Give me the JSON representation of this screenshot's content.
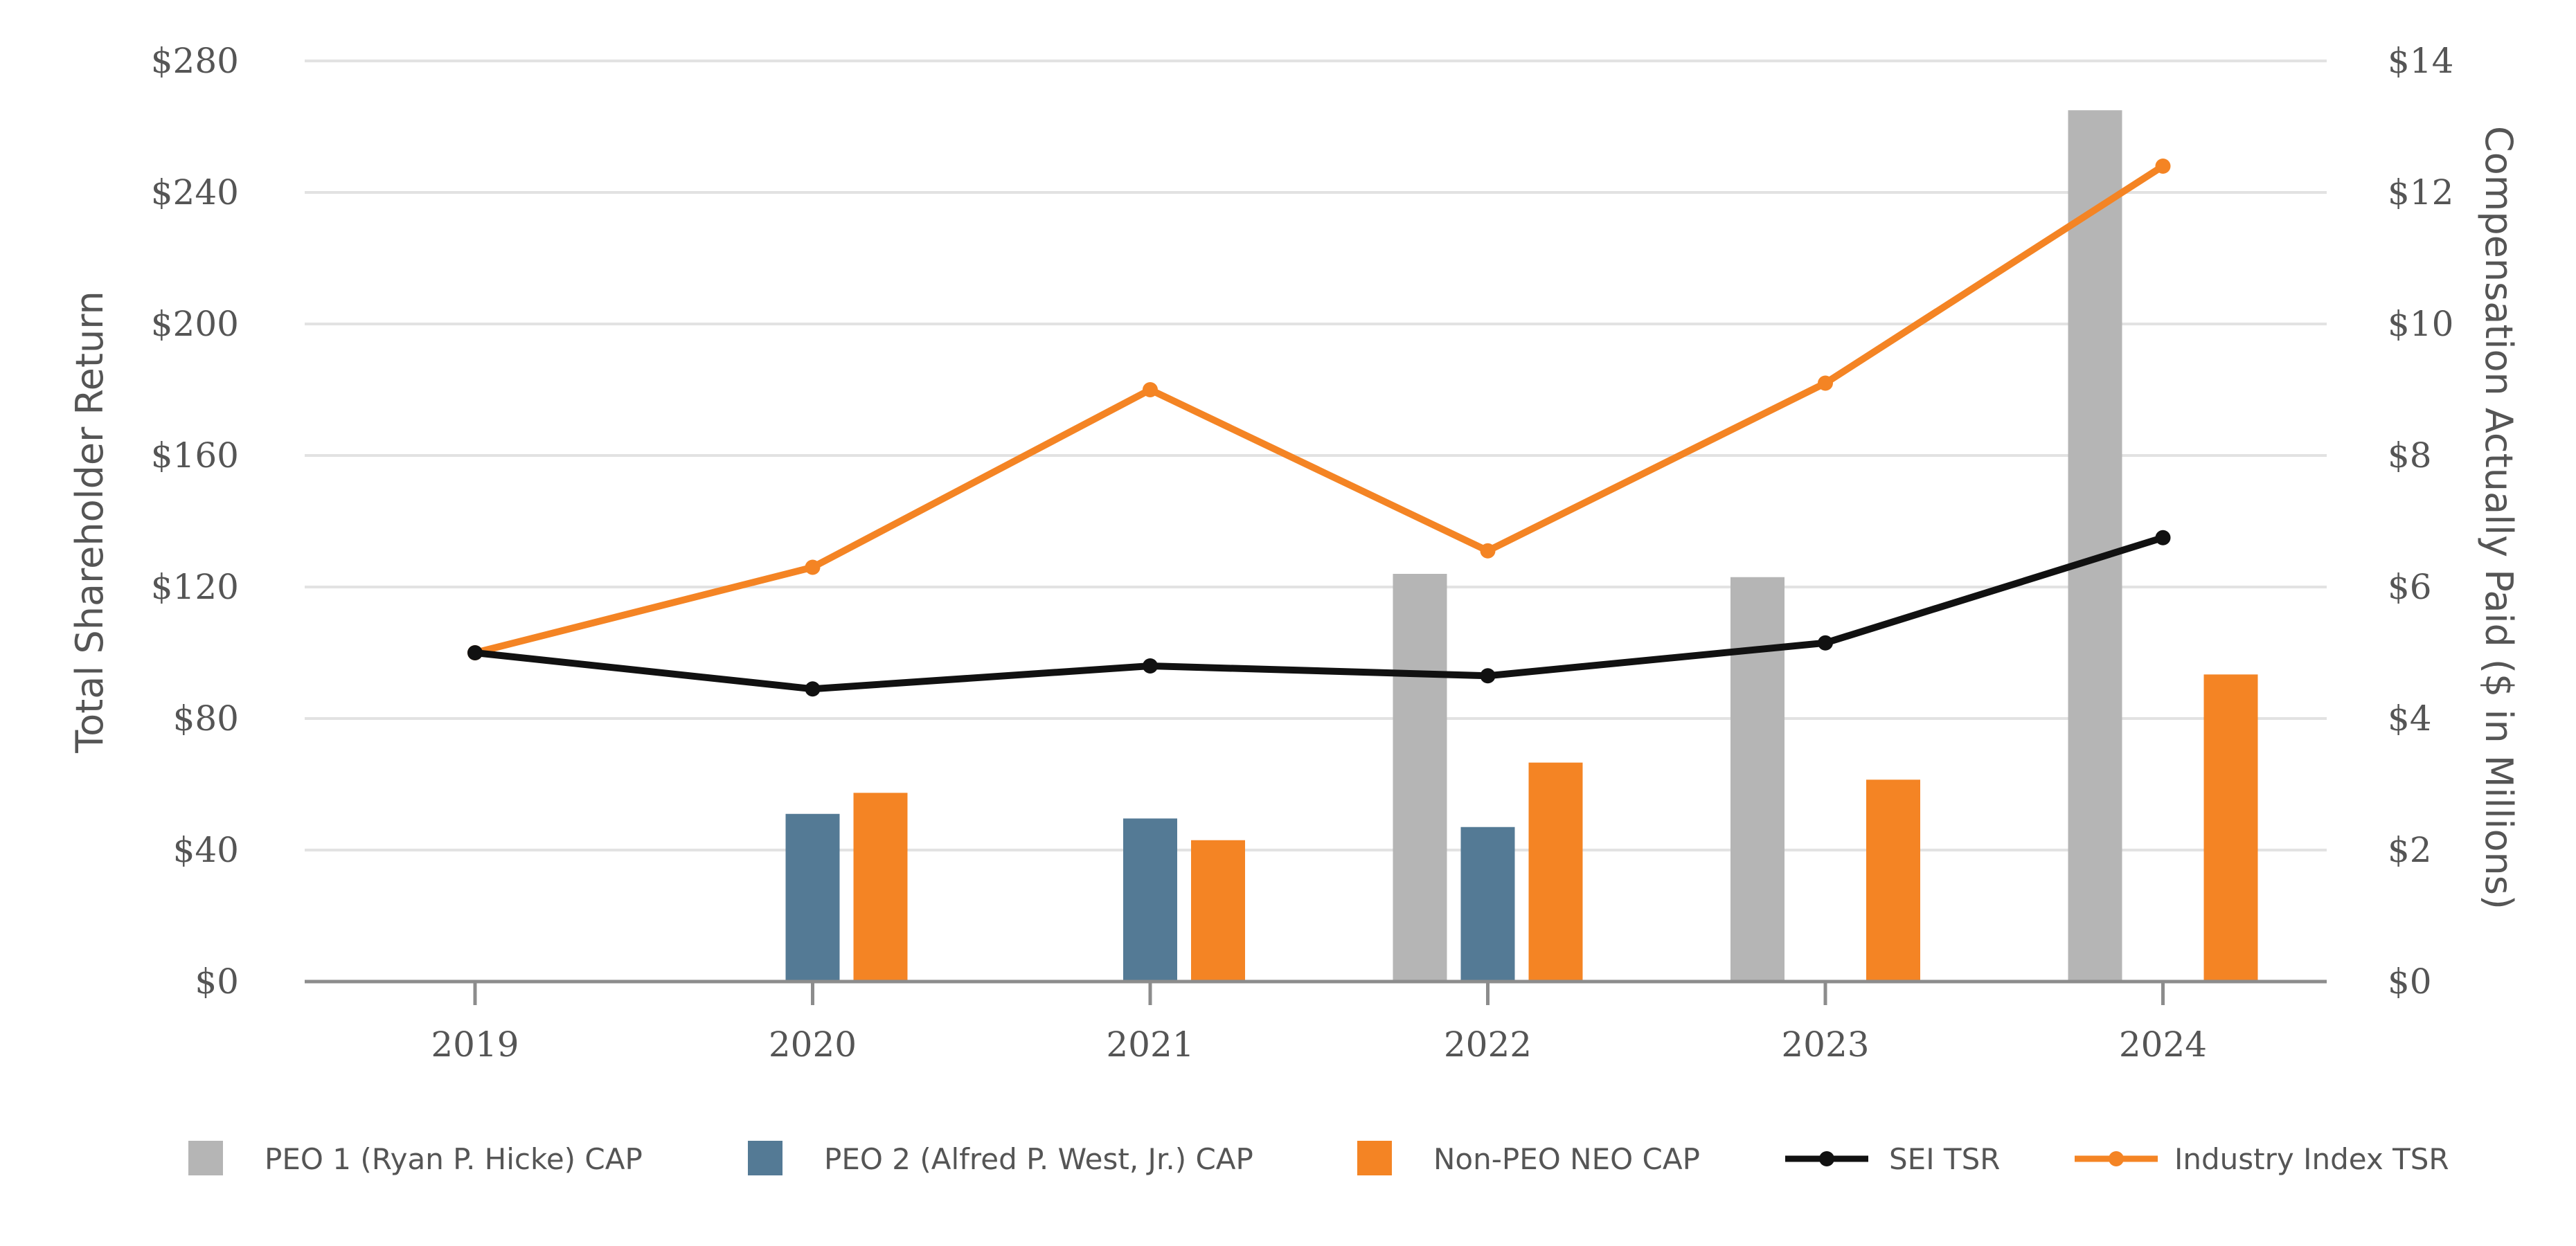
{
  "chart_data": {
    "type": "bar",
    "categories": [
      "2019",
      "2020",
      "2021",
      "2022",
      "2023",
      "2024"
    ],
    "left_axis": {
      "label": "Total Shareholder Return",
      "range": [
        0,
        280
      ],
      "ticks": [
        "$0",
        "$40",
        "$80",
        "$120",
        "$160",
        "$200",
        "$240",
        "$280"
      ]
    },
    "right_axis": {
      "label": "Compensation Actually Paid ($ in Millions)",
      "range": [
        0,
        14
      ],
      "ticks": [
        "$0",
        "$2",
        "$4",
        "$6",
        "$8",
        "$10",
        "$12",
        "$14"
      ]
    },
    "bar_series": [
      {
        "name": "PEO 1  (Ryan P. Hicke) CAP",
        "color": "#b5b5b5",
        "axis": "right",
        "values": [
          null,
          null,
          null,
          6.2,
          6.15,
          13.25
        ]
      },
      {
        "name": "PEO 2 (Alfred P. West, Jr.) CAP",
        "color": "#547a95",
        "axis": "right",
        "values": [
          null,
          2.55,
          2.48,
          2.35,
          null,
          null
        ]
      },
      {
        "name": "Non-PEO NEO CAP",
        "color": "#f48424",
        "axis": "right",
        "values": [
          null,
          2.87,
          2.15,
          3.33,
          3.07,
          4.67
        ]
      }
    ],
    "line_series": [
      {
        "name": "SEI TSR",
        "color": "#111111",
        "axis": "left",
        "values": [
          100,
          89,
          96,
          93,
          103,
          135
        ]
      },
      {
        "name": "Industry Index TSR",
        "color": "#f48424",
        "axis": "left",
        "values": [
          100,
          126,
          180,
          131,
          182,
          248
        ]
      }
    ],
    "legend_position": "bottom",
    "grid": true
  }
}
